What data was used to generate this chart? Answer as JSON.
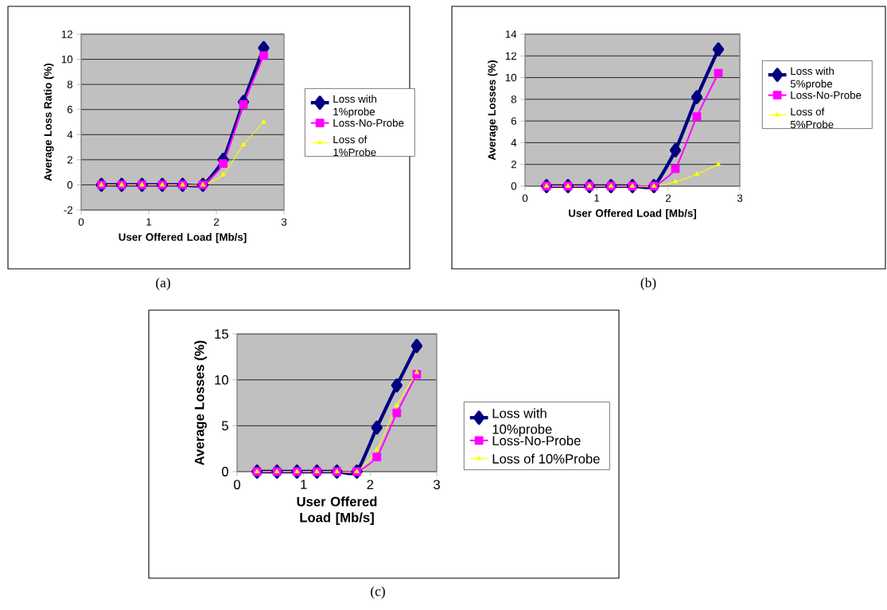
{
  "chart_data": [
    {
      "type": "line",
      "xlabel": "User Offered Load [Mb/s]",
      "ylabel": "Average Loss Ratio (%)",
      "x": [
        0.3,
        0.6,
        0.9,
        1.2,
        1.5,
        1.8,
        2.1,
        2.4,
        2.7
      ],
      "xlim": [
        0,
        3
      ],
      "xticks": [
        0,
        1,
        2,
        3
      ],
      "ylim": [
        -2,
        12
      ],
      "yticks": [
        -2,
        0,
        2,
        4,
        6,
        8,
        10,
        12
      ],
      "grid": "y",
      "legend": "right",
      "annotations": [
        "(a)"
      ],
      "series": [
        {
          "name": "Loss with 1%probe",
          "color": "#000080",
          "marker": "diamond",
          "values": [
            0,
            0,
            0,
            0,
            0,
            0,
            2.0,
            6.6,
            10.9
          ]
        },
        {
          "name": "Loss-No-Probe",
          "color": "#ff00ff",
          "marker": "square",
          "values": [
            0,
            0,
            0,
            0,
            0,
            0,
            1.7,
            6.4,
            10.3
          ]
        },
        {
          "name": "Loss of 1%Probe",
          "color": "#ffff00",
          "marker": "triangle",
          "values": [
            0,
            0,
            0,
            0,
            0,
            0,
            0.8,
            3.2,
            5.0
          ]
        }
      ]
    },
    {
      "type": "line",
      "xlabel": "User Offered Load [Mb/s]",
      "ylabel": "Average Losses (%)",
      "x": [
        0.3,
        0.6,
        0.9,
        1.2,
        1.5,
        1.8,
        2.1,
        2.4,
        2.7
      ],
      "xlim": [
        0,
        3
      ],
      "xticks": [
        0,
        1,
        2,
        3
      ],
      "ylim": [
        0,
        14
      ],
      "yticks": [
        0,
        2,
        4,
        6,
        8,
        10,
        12,
        14
      ],
      "grid": "y",
      "legend": "right",
      "annotations": [
        "(b)"
      ],
      "series": [
        {
          "name": "Loss with 5%probe",
          "color": "#000080",
          "marker": "diamond",
          "values": [
            0,
            0,
            0,
            0,
            0,
            0,
            3.3,
            8.2,
            12.6
          ]
        },
        {
          "name": "Loss-No-Probe",
          "color": "#ff00ff",
          "marker": "square",
          "values": [
            0,
            0,
            0,
            0,
            0,
            0,
            1.6,
            6.4,
            10.4
          ]
        },
        {
          "name": "Loss of 5%Probe",
          "color": "#ffff00",
          "marker": "triangle",
          "values": [
            0,
            0,
            0,
            0,
            0,
            0,
            0.4,
            1.1,
            2.0
          ]
        }
      ]
    },
    {
      "type": "line",
      "xlabel": "User Offered Load [Mb/s]",
      "ylabel": "Average Losses (%)",
      "x": [
        0.3,
        0.6,
        0.9,
        1.2,
        1.5,
        1.8,
        2.1,
        2.4,
        2.7
      ],
      "xlim": [
        0,
        3
      ],
      "xticks": [
        0,
        1,
        2,
        3
      ],
      "ylim": [
        0,
        15
      ],
      "yticks": [
        0,
        5,
        10,
        15
      ],
      "grid": "y",
      "legend": "right",
      "annotations": [
        "(c)"
      ],
      "series": [
        {
          "name": "Loss with 10%probe",
          "color": "#000080",
          "marker": "diamond",
          "values": [
            0,
            0,
            0,
            0,
            0,
            0,
            4.8,
            9.4,
            13.7
          ]
        },
        {
          "name": "Loss-No-Probe",
          "color": "#ff00ff",
          "marker": "square",
          "values": [
            0,
            0,
            0,
            0,
            0,
            0,
            1.6,
            6.4,
            10.6
          ]
        },
        {
          "name": "Loss of 10%Probe",
          "color": "#ffff00",
          "marker": "triangle",
          "values": [
            0,
            0,
            0,
            0,
            0,
            0,
            2.4,
            7.2,
            10.8
          ]
        }
      ]
    }
  ]
}
